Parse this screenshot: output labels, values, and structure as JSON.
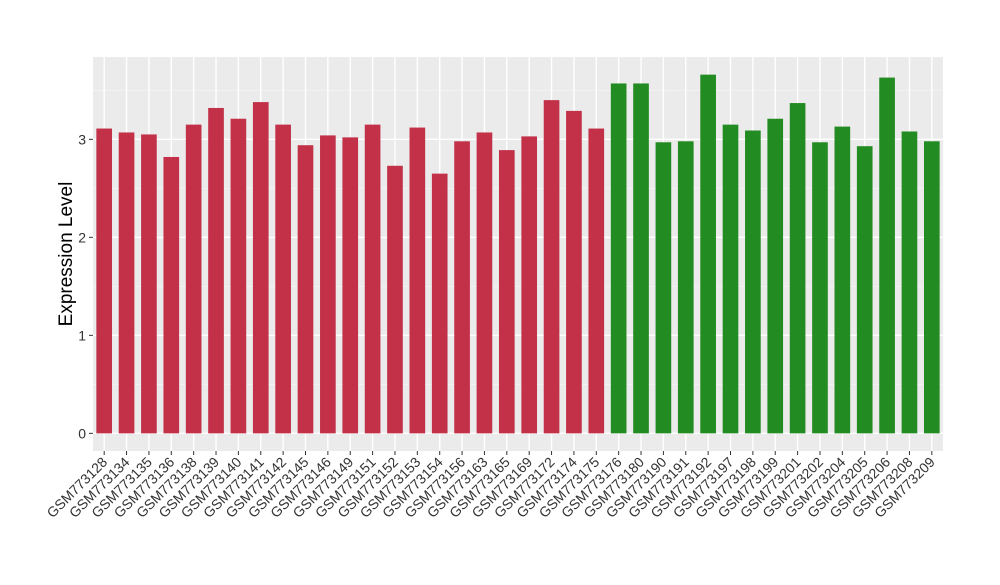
{
  "chart_data": {
    "type": "bar",
    "title": "",
    "xlabel": "",
    "ylabel": "Expression Level",
    "ylim": [
      -0.18,
      3.84
    ],
    "yticks": [
      0,
      1,
      2,
      3
    ],
    "grid": true,
    "colors": {
      "group1": "#C23148",
      "group2": "#228B22",
      "panel": "#EBEBEB",
      "grid": "#FFFFFF"
    },
    "categories": [
      "GSM773128",
      "GSM773134",
      "GSM773135",
      "GSM773136",
      "GSM773138",
      "GSM773139",
      "GSM773140",
      "GSM773141",
      "GSM773142",
      "GSM773145",
      "GSM773146",
      "GSM773149",
      "GSM773151",
      "GSM773152",
      "GSM773153",
      "GSM773154",
      "GSM773156",
      "GSM773163",
      "GSM773165",
      "GSM773169",
      "GSM773172",
      "GSM773174",
      "GSM773175",
      "GSM773176",
      "GSM773180",
      "GSM773190",
      "GSM773191",
      "GSM773192",
      "GSM773197",
      "GSM773198",
      "GSM773199",
      "GSM773201",
      "GSM773202",
      "GSM773204",
      "GSM773205",
      "GSM773206",
      "GSM773208",
      "GSM773209"
    ],
    "values": [
      3.11,
      3.07,
      3.05,
      2.82,
      3.15,
      3.32,
      3.21,
      3.38,
      3.15,
      2.94,
      3.04,
      3.02,
      3.15,
      2.73,
      3.12,
      2.65,
      2.98,
      3.07,
      2.89,
      3.03,
      3.4,
      3.29,
      3.11,
      3.57,
      3.57,
      2.97,
      2.98,
      3.66,
      3.15,
      3.09,
      3.21,
      3.37,
      2.97,
      3.13,
      2.93,
      3.63,
      3.08,
      2.98
    ],
    "groups": [
      1,
      1,
      1,
      1,
      1,
      1,
      1,
      1,
      1,
      1,
      1,
      1,
      1,
      1,
      1,
      1,
      1,
      1,
      1,
      1,
      1,
      1,
      1,
      2,
      2,
      2,
      2,
      2,
      2,
      2,
      2,
      2,
      2,
      2,
      2,
      2,
      2,
      2
    ]
  }
}
